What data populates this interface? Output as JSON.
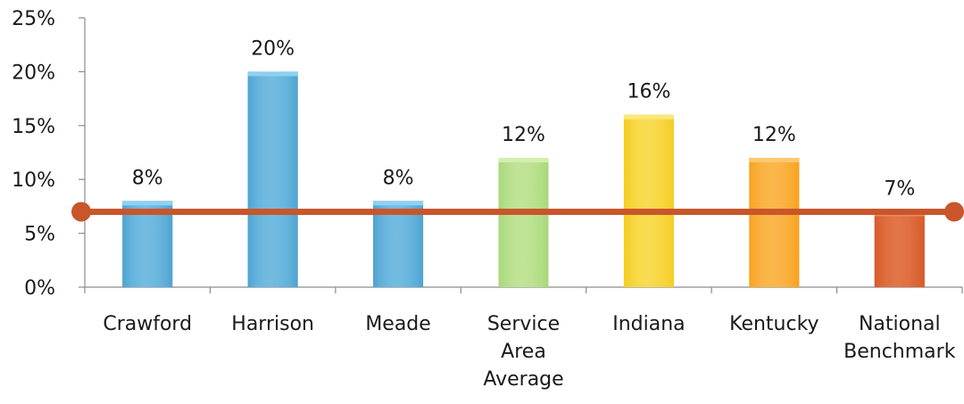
{
  "chart_data": {
    "type": "bar",
    "categories": [
      [
        "Crawford"
      ],
      [
        "Harrison"
      ],
      [
        "Meade"
      ],
      [
        "Service",
        "Area",
        "Average"
      ],
      [
        "Indiana"
      ],
      [
        "Kentucky"
      ],
      [
        "National",
        "Benchmark"
      ]
    ],
    "values": [
      8,
      20,
      8,
      12,
      16,
      12,
      7
    ],
    "data_labels": [
      "8%",
      "20%",
      "8%",
      "12%",
      "16%",
      "12%",
      "7%"
    ],
    "bar_colors": [
      "#4fa3d1",
      "#4fa3d1",
      "#4fa3d1",
      "#a9d77a",
      "#f5cd1f",
      "#f9a21f",
      "#d65a2a"
    ],
    "bar_highlight_colors": [
      "#8fd0f0",
      "#8fd0f0",
      "#8fd0f0",
      "#d2efad",
      "#fbe77a",
      "#fcc870",
      "#ec8a60"
    ],
    "ylim": [
      0,
      25
    ],
    "y_ticks": [
      0,
      5,
      10,
      15,
      20,
      25
    ],
    "y_tick_labels": [
      "0%",
      "5%",
      "10%",
      "15%",
      "20%",
      "25%"
    ],
    "reference_line": {
      "value": 7,
      "color": "#c9562a"
    },
    "grid": false,
    "xlabel": "",
    "ylabel": "",
    "title": ""
  }
}
